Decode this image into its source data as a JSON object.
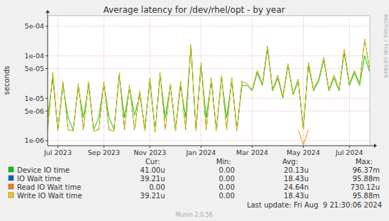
{
  "chart_data": {
    "type": "line",
    "title": "Average latency for /dev/rhel/opt - by year",
    "y_label": "seconds",
    "log": "y",
    "grid": true,
    "ylim": [
      7.6e-07,
      0.00089
    ],
    "yticks": [
      {
        "value": 1e-06,
        "label": "1e-06"
      },
      {
        "value": 5e-06,
        "label": "5e-06"
      },
      {
        "value": 1e-05,
        "label": "1e-05"
      },
      {
        "value": 5e-05,
        "label": "5e-05"
      },
      {
        "value": 0.0001,
        "label": "1e-04"
      },
      {
        "value": 0.0005,
        "label": "5e-04"
      }
    ],
    "categories": [
      null,
      null,
      "Jul 2023",
      null,
      null,
      null,
      null,
      null,
      null,
      null,
      null,
      "Sep 2023",
      null,
      null,
      null,
      null,
      null,
      null,
      null,
      null,
      "Nov 2023",
      null,
      null,
      null,
      null,
      null,
      null,
      null,
      null,
      null,
      "Jan 2024",
      null,
      null,
      null,
      null,
      null,
      null,
      null,
      null,
      null,
      "Mar 2024",
      null,
      null,
      null,
      null,
      null,
      null,
      null,
      null,
      null,
      "May 2024",
      null,
      null,
      null,
      null,
      null,
      null,
      null,
      null,
      "Jul 2024",
      null,
      null,
      null,
      null
    ],
    "stat_labels": [
      "Cur:",
      "Min:",
      "Avg:",
      "Max:"
    ],
    "series": [
      {
        "name": "Device IO time",
        "color": "#00CC00",
        "cur": "41.00u",
        "min": "0.00",
        "avg": "20.13u",
        "max": "96.37m",
        "values": [
          3.5e-06,
          3e-05,
          1.8e-06,
          2e-05,
          3.5e-06,
          1.8e-06,
          1.8e-05,
          3.5e-06,
          2e-05,
          1.8e-06,
          3.5e-06,
          2.2e-05,
          3.5e-06,
          1.8e-06,
          3.5e-05,
          3.5e-06,
          1.8e-05,
          4e-06,
          1.2e-05,
          2e-06,
          2.5e-05,
          1.7e-06,
          3.5e-05,
          3.5e-06,
          2e-05,
          1.8e-06,
          2e-05,
          3.5e-06,
          0.00017,
          1.8e-06,
          6e-05,
          3.5e-06,
          2.5e-05,
          1.8e-06,
          3e-05,
          3.5e-06,
          2.5e-05,
          1.8e-06,
          2e-05,
          2e-05,
          1.5e-05,
          4e-05,
          2e-05,
          0.00015,
          1.5e-05,
          3e-05,
          1e-05,
          6e-05,
          1.2e-05,
          2.5e-05,
          2e-06,
          6e-05,
          1.5e-05,
          2.5e-05,
          8e-05,
          1.5e-05,
          3e-05,
          1.5e-05,
          0.00012,
          2e-05,
          4e-05,
          2e-05,
          0.0001,
          4e-05
        ]
      },
      {
        "name": "IO Wait time",
        "color": "#0066B3",
        "cur": "39.21u",
        "min": "0.00",
        "avg": "18.43u",
        "max": "95.88m",
        "values": [
          1.8e-06,
          4e-05,
          1.7e-06,
          2.5e-05,
          1.8e-06,
          1.7e-06,
          2.2e-05,
          1.8e-06,
          2.5e-05,
          1.7e-06,
          1.8e-06,
          2.4e-05,
          1.8e-06,
          1.7e-06,
          4e-05,
          1.8e-06,
          2e-05,
          1.8e-06,
          1.5e-05,
          1.7e-06,
          3e-05,
          1.6e-06,
          4e-05,
          1.8e-06,
          2.2e-05,
          1.7e-06,
          2.5e-05,
          1.8e-06,
          0.00019,
          1.7e-06,
          7e-05,
          1.8e-06,
          3e-05,
          1.7e-06,
          3.5e-05,
          1.8e-06,
          3e-05,
          1.7e-06,
          2.5e-05,
          2.2e-05,
          1.6e-05,
          4.5e-05,
          2.2e-05,
          0.00017,
          1.6e-05,
          3.5e-05,
          1.1e-05,
          6.5e-05,
          1.3e-05,
          2.8e-05,
          1.8e-06,
          7e-05,
          1.6e-05,
          2.8e-05,
          9e-05,
          1.6e-05,
          3.5e-05,
          1.6e-05,
          0.00014,
          2.2e-05,
          4.5e-05,
          2.2e-05,
          0.00025,
          4.5e-05
        ]
      },
      {
        "name": "Read IO Wait time",
        "color": "#FF8000",
        "cur": "0.00",
        "min": "0.00",
        "avg": "24.64n",
        "max": "730.12u",
        "values": [
          null,
          null,
          null,
          null,
          null,
          null,
          null,
          null,
          null,
          null,
          null,
          null,
          null,
          null,
          null,
          null,
          null,
          null,
          null,
          null,
          null,
          null,
          null,
          null,
          null,
          null,
          null,
          null,
          null,
          null,
          null,
          null,
          null,
          null,
          null,
          null,
          null,
          null,
          null,
          null,
          null,
          null,
          null,
          null,
          null,
          null,
          null,
          null,
          null,
          1.8e-06,
          8e-07,
          1.8e-06,
          null,
          null,
          null,
          null,
          null,
          null,
          null,
          null,
          null,
          null,
          null,
          null
        ]
      },
      {
        "name": "Write IO Wait time",
        "color": "#FFCC00",
        "cur": "39.21u",
        "min": "0.00",
        "avg": "18.43u",
        "max": "95.88m",
        "values": [
          1.8e-06,
          4e-05,
          1.7e-06,
          2.5e-05,
          1.8e-06,
          1.7e-06,
          2.2e-05,
          1.8e-06,
          2.5e-05,
          1.7e-06,
          1.8e-06,
          2.4e-05,
          1.8e-06,
          1.7e-06,
          4e-05,
          1.8e-06,
          2e-05,
          1.8e-06,
          1.5e-05,
          1.7e-06,
          3e-05,
          1.6e-06,
          4e-05,
          1.8e-06,
          2.2e-05,
          1.7e-06,
          2.5e-05,
          1.8e-06,
          0.00019,
          1.7e-06,
          7e-05,
          1.8e-06,
          3e-05,
          1.7e-06,
          3.5e-05,
          1.8e-06,
          3e-05,
          1.7e-06,
          2.5e-05,
          2.2e-05,
          1.6e-05,
          4.5e-05,
          2.2e-05,
          0.00017,
          1.6e-05,
          3.5e-05,
          1.1e-05,
          6.5e-05,
          1.3e-05,
          2.8e-05,
          1.8e-06,
          7e-05,
          1.6e-05,
          2.8e-05,
          9e-05,
          1.6e-05,
          3.5e-05,
          1.6e-05,
          0.00014,
          2.2e-05,
          4.5e-05,
          2.2e-05,
          0.00025,
          4.5e-05
        ]
      }
    ],
    "footer": "Last update: Fri Aug  9 21:30:06 2024",
    "credit": "Munin 2.0.56",
    "watermark": "RRDTOOL / TOBI OETIKER"
  }
}
